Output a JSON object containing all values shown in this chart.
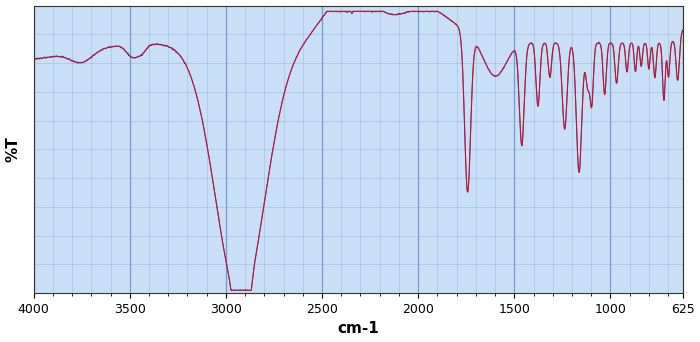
{
  "title": "",
  "xlabel": "cm-1",
  "ylabel": "%T",
  "xmin": 625,
  "xmax": 4000,
  "ymin": 0,
  "ymax": 100,
  "bg_color": "#c8dff5",
  "grid_major_color": "#5588bb",
  "grid_minor_color": "#88aacc",
  "line_color_red": "#cc1111",
  "line_color_blue": "#2222bb",
  "xticks": [
    4000,
    3500,
    3000,
    2500,
    2000,
    1500,
    1000,
    625
  ],
  "figwidth": 7.0,
  "figheight": 3.42,
  "dpi": 100
}
